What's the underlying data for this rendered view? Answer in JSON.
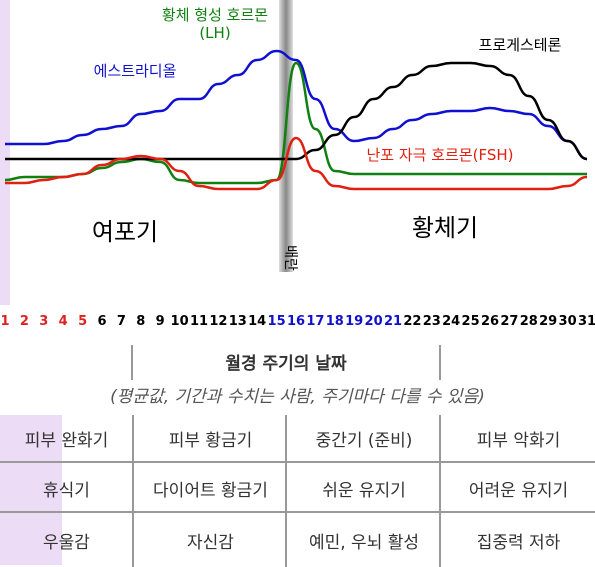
{
  "chart_data": {
    "type": "line",
    "categories": [
      "1",
      "2",
      "3",
      "4",
      "5",
      "6",
      "7",
      "8",
      "9",
      "10",
      "11",
      "12",
      "13",
      "14",
      "15",
      "16",
      "17",
      "18",
      "19",
      "20",
      "21",
      "22",
      "23",
      "24",
      "25",
      "26",
      "27",
      "28",
      "29",
      "30",
      "31"
    ],
    "category_colors": [
      "#d22",
      "#d22",
      "#d22",
      "#d22",
      "#d22",
      "#000",
      "#000",
      "#000",
      "#000",
      "#000",
      "#000",
      "#000",
      "#000",
      "#000",
      "#11c",
      "#11c",
      "#11c",
      "#11c",
      "#11c",
      "#11c",
      "#11c",
      "#000",
      "#000",
      "#000",
      "#000",
      "#000",
      "#000",
      "#000",
      "#000",
      "#000",
      "#000"
    ],
    "ylim": [
      0,
      100
    ],
    "series": [
      {
        "name": "에스트라디올",
        "color": "#1010d0",
        "values": [
          52,
          52,
          52,
          53,
          55,
          57,
          58,
          62,
          63,
          67,
          67,
          72,
          75,
          80,
          83,
          80,
          67,
          57,
          53,
          54,
          57,
          60,
          62,
          63,
          63,
          64,
          63,
          62,
          58,
          53,
          47
        ]
      },
      {
        "name": "황체 형성 호르몬(LH)",
        "color": "#108010",
        "values": [
          40,
          41,
          41,
          41,
          42,
          44,
          46,
          47,
          46,
          40,
          39,
          39,
          39,
          39,
          40,
          79,
          57,
          43,
          42,
          42,
          42,
          42,
          42,
          42,
          42,
          42,
          42,
          42,
          42,
          42,
          42
        ]
      },
      {
        "name": "프로게스테론",
        "color": "#000000",
        "values": [
          47,
          47,
          47,
          47,
          47,
          47,
          47,
          47,
          47,
          47,
          47,
          47,
          47,
          47,
          47,
          47,
          50,
          55,
          61,
          67,
          71,
          75,
          78,
          79,
          79,
          78,
          75,
          68,
          60,
          53,
          47
        ]
      },
      {
        "name": "난포 자극 호르몬(FSH)",
        "color": "#e02010",
        "values": [
          39,
          39,
          40,
          41,
          42,
          45,
          47,
          48,
          47,
          43,
          38,
          37,
          37,
          37,
          40,
          54,
          43,
          38,
          37,
          37,
          37,
          37,
          37,
          37,
          37,
          37,
          37,
          37,
          37,
          38,
          41
        ]
      }
    ],
    "phases": [
      "여포기",
      "황체기"
    ],
    "ovulation": "배란"
  },
  "table": {
    "title": "월경 주기의 날짜",
    "note": "(평균값, 기간과 수치는 사람, 주기마다 다를 수 있음)",
    "rows": [
      [
        "피부 완화기",
        "피부 황금기",
        "중간기 (준비)",
        "피부 악화기"
      ],
      [
        "휴식기",
        "다이어트 황금기",
        "쉬운 유지기",
        "어려운 유지기"
      ],
      [
        "우울감",
        "자신감",
        "예민, 우뇌 활성",
        "집중력 저하"
      ]
    ]
  }
}
